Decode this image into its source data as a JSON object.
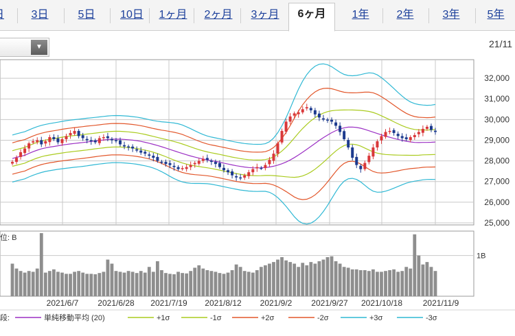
{
  "tabs": [
    {
      "label": "日"
    },
    {
      "label": "3日"
    },
    {
      "label": "5日"
    },
    {
      "label": "10日"
    },
    {
      "label": "1ヶ月"
    },
    {
      "label": "2ヶ月"
    },
    {
      "label": "3ヶ月"
    },
    {
      "label": "6ヶ月",
      "active": true
    },
    {
      "label": "1年"
    },
    {
      "label": "2年"
    },
    {
      "label": "3年"
    },
    {
      "label": "5年"
    }
  ],
  "date_stamp": "21/11",
  "volume_unit_label": "位: B",
  "colors": {
    "up_candle": "#d9383a",
    "down_candle": "#1c3a8e",
    "sma": "#9b2fc4",
    "band1": "#aacb1e",
    "band2": "#e2562a",
    "band3": "#2fb8d4",
    "volume_bar": "#8e8e8e",
    "grid": "#c8c8c8"
  },
  "chart_data": [
    {
      "type": "candlestick",
      "title": "",
      "y_ticks": [
        "32,000",
        "31,000",
        "30,000",
        "29,000",
        "28,000",
        "27,000",
        "26,000",
        "25,000"
      ],
      "y_values": [
        32000,
        31000,
        30000,
        29000,
        28000,
        27000,
        26000,
        25000
      ],
      "ylim": [
        24900,
        32900
      ],
      "x_labels": [
        "2021/6/7",
        "2021/6/28",
        "2021/7/19",
        "2021/8/12",
        "2021/9/2",
        "2021/9/27",
        "2021/10/18",
        "2021/11/9"
      ],
      "grid": true,
      "ohlc_close": [
        27950,
        28150,
        28420,
        28600,
        28850,
        28950,
        29000,
        28800,
        28950,
        29150,
        29050,
        28900,
        29050,
        29200,
        29350,
        29450,
        29200,
        29100,
        29000,
        28950,
        28900,
        29100,
        29150,
        29100,
        29000,
        28950,
        28800,
        28700,
        28650,
        28600,
        28500,
        28400,
        28350,
        28250,
        28150,
        28000,
        27950,
        27850,
        27800,
        27700,
        27600,
        27650,
        27700,
        27800,
        27900,
        28000,
        28100,
        28050,
        27950,
        27850,
        27700,
        27550,
        27450,
        27300,
        27200,
        27150,
        27300,
        27450,
        27600,
        27700,
        27650,
        27800,
        28050,
        28350,
        28850,
        29450,
        29900,
        30150,
        30300,
        30350,
        30500,
        30600,
        30450,
        30250,
        30100,
        30000,
        29950,
        29900,
        29700,
        29400,
        29050,
        28650,
        28150,
        27800,
        27600,
        27900,
        28250,
        28650,
        28950,
        29200,
        29400,
        29450,
        29350,
        29200,
        29100,
        29050,
        29150,
        29250,
        29400,
        29550,
        29650,
        29500,
        29400
      ],
      "series": [
        {
          "name": "単純移動平均 (20)"
        },
        {
          "name": "+1σ"
        },
        {
          "name": "-1σ"
        },
        {
          "name": "+2σ"
        },
        {
          "name": "-2σ"
        },
        {
          "name": "+3σ"
        },
        {
          "name": "-3σ"
        }
      ],
      "legend_prefix": "段:",
      "legend_placement": "bottom"
    },
    {
      "type": "bar",
      "title": "",
      "y_ticks": [
        "1B"
      ],
      "y_values": [
        1
      ],
      "ylim": [
        0,
        1.6
      ],
      "volume": [
        0.8,
        0.68,
        0.62,
        0.58,
        0.62,
        0.6,
        0.68,
        1.55,
        0.58,
        0.62,
        0.66,
        0.6,
        0.58,
        0.55,
        0.55,
        0.6,
        0.62,
        0.58,
        0.55,
        0.55,
        0.54,
        0.57,
        0.6,
        0.9,
        0.8,
        0.62,
        0.6,
        0.58,
        0.62,
        0.6,
        0.57,
        0.62,
        0.58,
        0.72,
        0.6,
        0.86,
        0.64,
        0.57,
        0.55,
        0.54,
        0.6,
        0.57,
        0.56,
        0.62,
        0.7,
        0.76,
        0.68,
        0.64,
        0.62,
        0.6,
        0.57,
        0.55,
        0.58,
        0.64,
        0.78,
        0.72,
        0.62,
        0.6,
        0.58,
        0.64,
        0.72,
        0.76,
        0.8,
        0.84,
        0.9,
        0.96,
        0.88,
        0.84,
        0.8,
        0.72,
        0.82,
        0.76,
        0.84,
        0.8,
        0.86,
        0.9,
        0.96,
        0.98,
        0.86,
        0.8,
        0.72,
        0.7,
        0.66,
        0.66,
        0.64,
        0.64,
        0.62,
        0.66,
        0.6,
        0.6,
        0.62,
        0.64,
        0.66,
        0.6,
        0.62,
        0.72,
        0.68,
        1.52,
        1.0,
        0.78,
        0.84,
        0.72,
        0.62
      ]
    }
  ]
}
